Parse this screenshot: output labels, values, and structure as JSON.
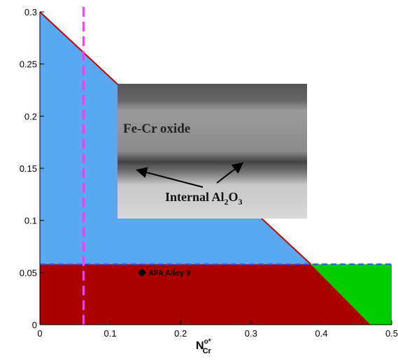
{
  "chart_data": {
    "type": "region-map",
    "xlim": [
      0,
      0.5
    ],
    "ylim": [
      0,
      0.3
    ],
    "xticks": [
      0,
      0.1,
      0.2,
      0.3,
      0.4,
      0.5
    ],
    "yticks": [
      0,
      0.05,
      0.1,
      0.15,
      0.2,
      0.25,
      0.3
    ],
    "x_label": {
      "base": "N",
      "sup": "o*",
      "sub": "Cr"
    },
    "regions": [
      {
        "color": "#5aa8f0",
        "x": [
          0,
          0.385,
          0
        ],
        "y": [
          0.3,
          0.058,
          0.058
        ]
      },
      {
        "color": "#aa0000",
        "x": [
          0,
          0.385,
          0.47,
          0
        ],
        "y": [
          0.058,
          0.058,
          0,
          0
        ]
      },
      {
        "color": "#00cc00",
        "x": [
          0.385,
          0.5,
          0.5,
          0.47
        ],
        "y": [
          0.058,
          0.058,
          0,
          0
        ]
      }
    ],
    "boundary": {
      "color": "#cc0000",
      "x": [
        0,
        0.385
      ],
      "y": [
        0.3,
        0.058
      ]
    },
    "hline": {
      "color": "#3355dd",
      "value": 0.058
    },
    "vline": {
      "color": "#ee44ee",
      "value": 0.062
    },
    "point": {
      "name": "AFA Alloy 9",
      "x": 0.145,
      "y": 0.05
    },
    "inset": {
      "top_label": "Fe-Cr oxide",
      "bottom_label": [
        "Internal Al",
        "2",
        "O",
        "3"
      ]
    }
  }
}
